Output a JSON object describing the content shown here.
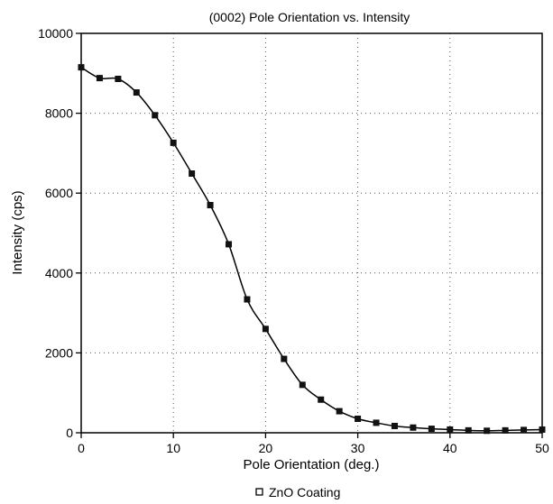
{
  "chart_data": {
    "type": "line",
    "title": "(0002) Pole Orientation vs. Intensity",
    "xlabel": "Pole Orientation (deg.)",
    "ylabel": "Intensity (cps)",
    "xlim": [
      0,
      50
    ],
    "ylim": [
      0,
      10000
    ],
    "xticks": [
      0,
      10,
      20,
      30,
      40,
      50
    ],
    "yticks": [
      0,
      2000,
      4000,
      6000,
      8000,
      10000
    ],
    "grid": "dotted",
    "legend_position": "bottom-center",
    "marker": "square",
    "series": [
      {
        "name": "ZnO Coating",
        "color": "#000000",
        "x": [
          0,
          2,
          4,
          6,
          8,
          10,
          12,
          14,
          16,
          18,
          20,
          22,
          24,
          26,
          28,
          30,
          32,
          34,
          36,
          38,
          40,
          42,
          44,
          46,
          48,
          50
        ],
        "y": [
          9150,
          8880,
          8860,
          8520,
          7950,
          7260,
          6490,
          5700,
          4720,
          3340,
          2600,
          1850,
          1200,
          830,
          540,
          350,
          250,
          170,
          130,
          100,
          80,
          60,
          50,
          60,
          70,
          80
        ]
      }
    ]
  }
}
